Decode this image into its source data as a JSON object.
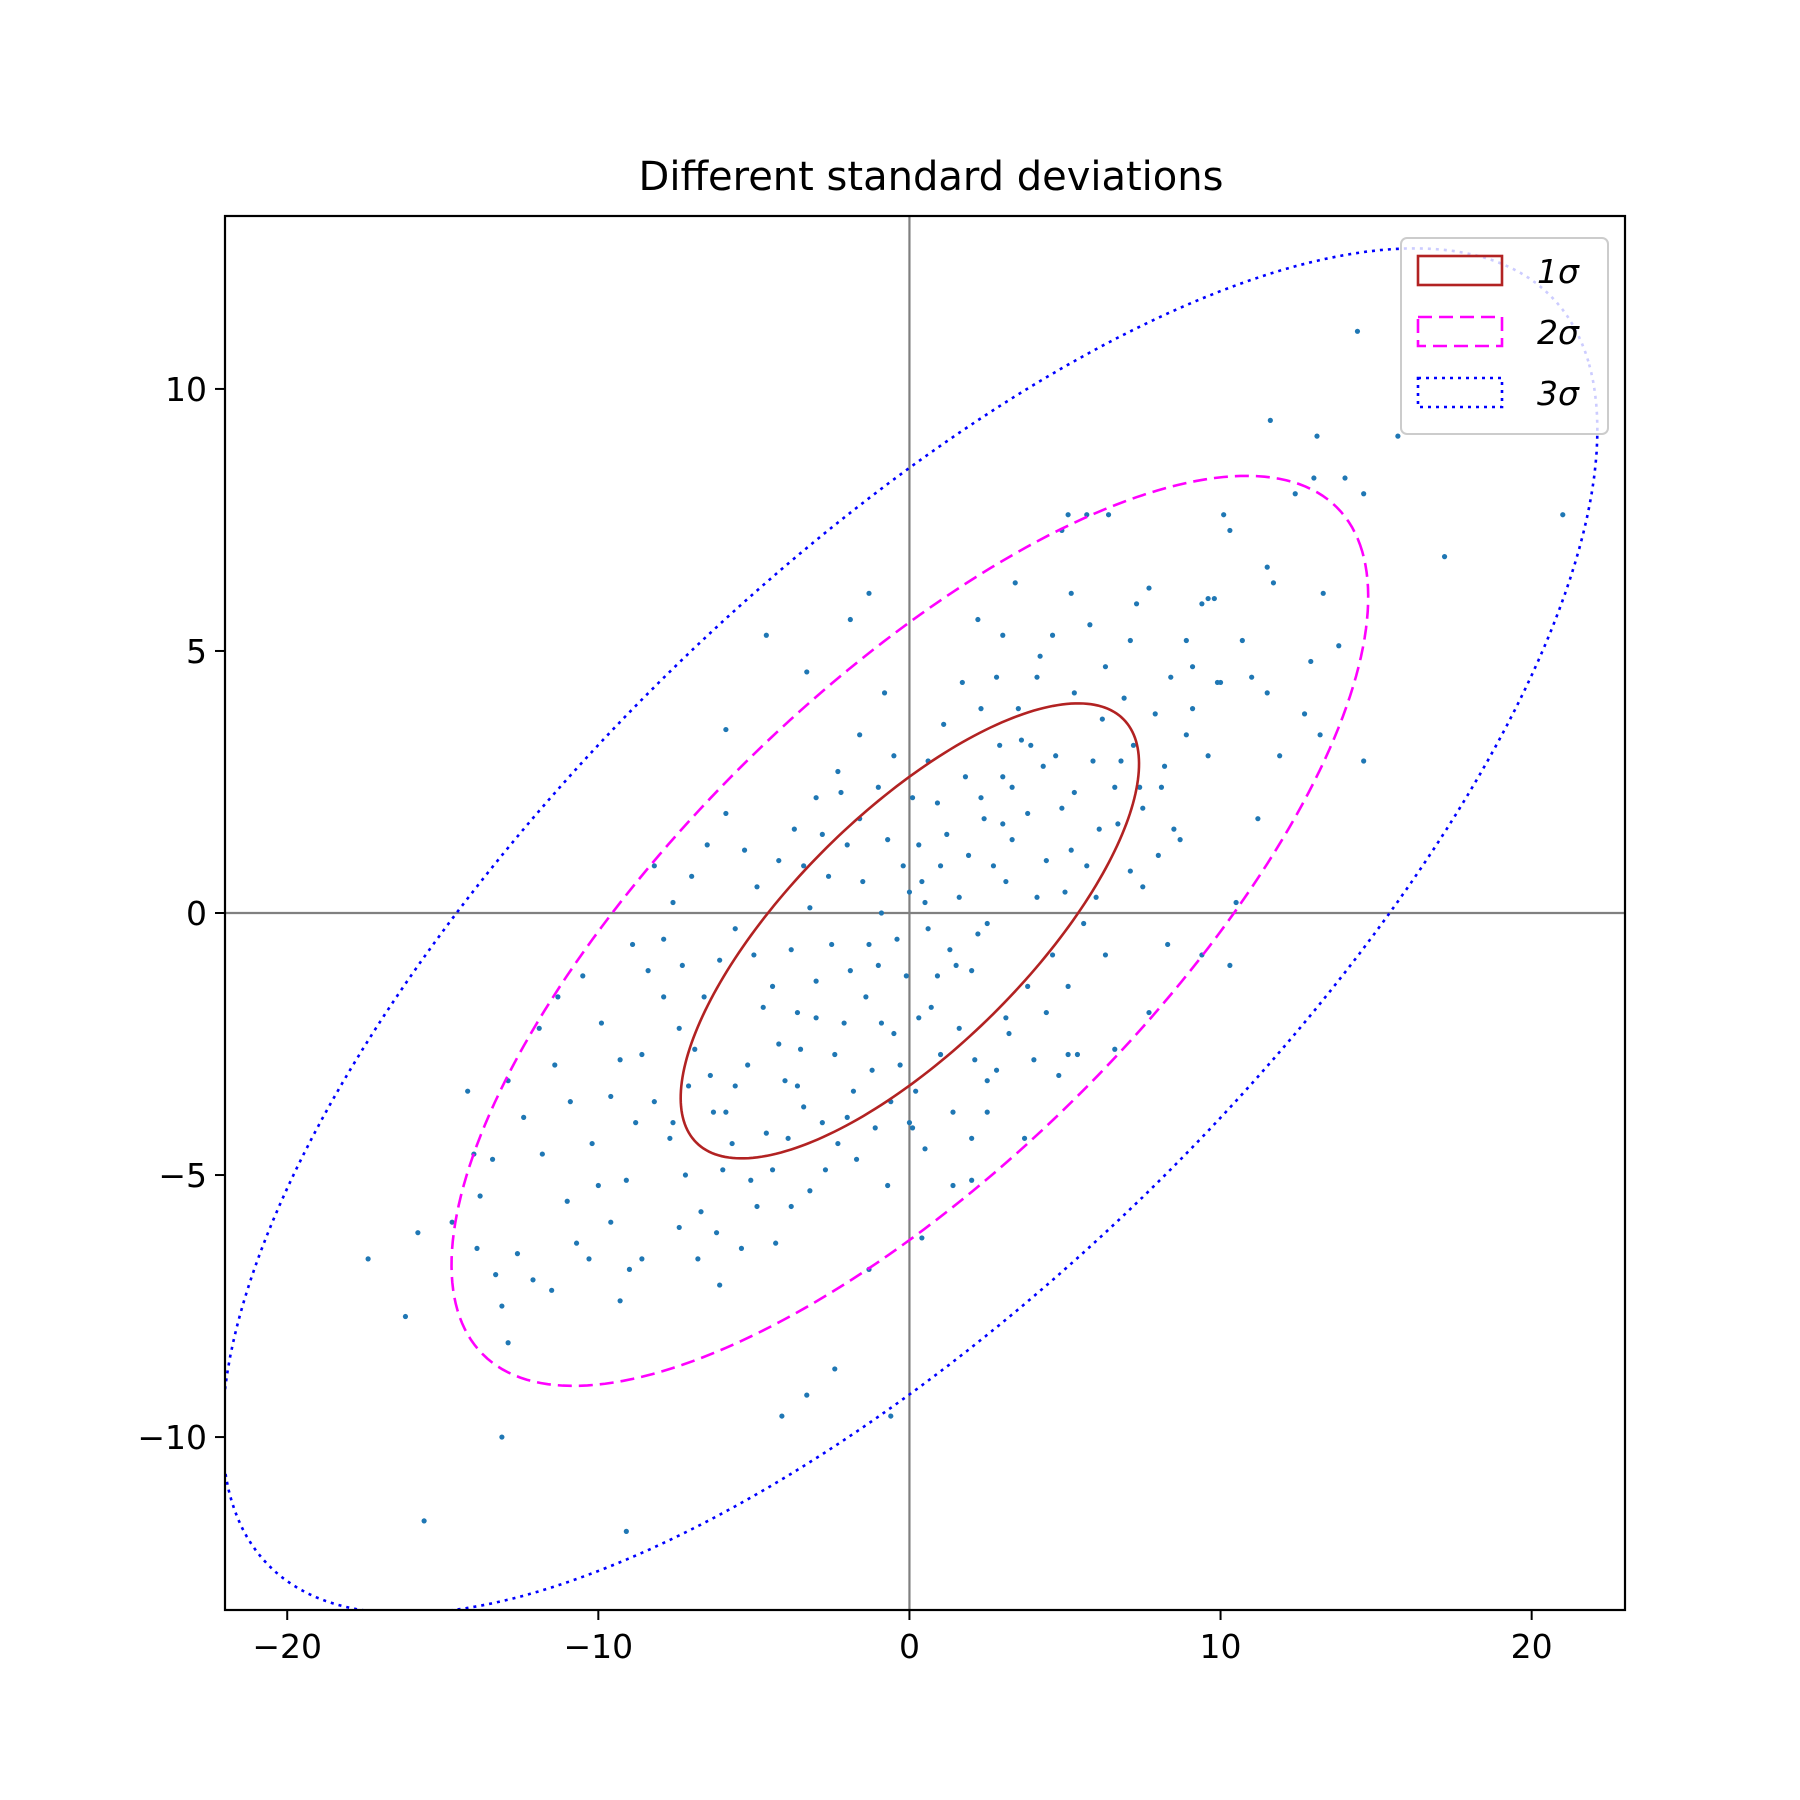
{
  "chart_data": {
    "type": "scatter",
    "title": "Different standard deviations",
    "xlabel": "",
    "ylabel": "",
    "xlim": [
      -22,
      23
    ],
    "ylim": [
      -13.3,
      13.3
    ],
    "xticks": [
      -20,
      -10,
      0,
      10,
      20
    ],
    "xtick_labels": [
      "−20",
      "−10",
      "0",
      "10",
      "20"
    ],
    "yticks": [
      -10,
      -5,
      0,
      5,
      10
    ],
    "ytick_labels": [
      "−10",
      "−5",
      "0",
      "5",
      "10"
    ],
    "grid": false,
    "reference_lines": {
      "x": 0,
      "y": 0,
      "color": "#808080"
    },
    "legend_position": "top-right",
    "scatter_color": "#1f77b4",
    "points": [
      [
        14.4,
        11.1
      ],
      [
        11.6,
        9.4
      ],
      [
        13.1,
        9.1
      ],
      [
        15.7,
        9.1
      ],
      [
        21.0,
        7.6
      ],
      [
        13.0,
        8.3
      ],
      [
        14.0,
        8.3
      ],
      [
        14.6,
        8.0
      ],
      [
        12.4,
        8.0
      ],
      [
        17.2,
        6.8
      ],
      [
        11.5,
        6.6
      ],
      [
        11.7,
        6.3
      ],
      [
        13.3,
        6.1
      ],
      [
        10.7,
        5.2
      ],
      [
        13.8,
        5.1
      ],
      [
        12.9,
        4.8
      ],
      [
        11.0,
        4.5
      ],
      [
        11.5,
        4.2
      ],
      [
        12.7,
        3.8
      ],
      [
        13.2,
        3.4
      ],
      [
        14.6,
        2.9
      ],
      [
        11.9,
        3.0
      ],
      [
        11.2,
        1.8
      ],
      [
        10.5,
        0.2
      ],
      [
        10.3,
        -1.0
      ],
      [
        10.1,
        7.6
      ],
      [
        10.3,
        7.3
      ],
      [
        9.8,
        6.0
      ],
      [
        9.6,
        6.0
      ],
      [
        9.1,
        4.7
      ],
      [
        9.9,
        4.4
      ],
      [
        8.9,
        3.4
      ],
      [
        9.6,
        3.0
      ],
      [
        8.1,
        2.4
      ],
      [
        8.7,
        1.4
      ],
      [
        8.0,
        1.1
      ],
      [
        7.7,
        6.2
      ],
      [
        7.3,
        5.9
      ],
      [
        7.1,
        5.2
      ],
      [
        6.4,
        7.6
      ],
      [
        5.7,
        7.6
      ],
      [
        5.1,
        7.6
      ],
      [
        4.9,
        7.3
      ],
      [
        3.4,
        6.3
      ],
      [
        2.2,
        5.6
      ],
      [
        3.0,
        5.3
      ],
      [
        2.8,
        4.5
      ],
      [
        4.2,
        4.9
      ],
      [
        5.3,
        4.2
      ],
      [
        6.2,
        3.7
      ],
      [
        6.8,
        2.9
      ],
      [
        7.4,
        2.4
      ],
      [
        6.7,
        1.7
      ],
      [
        7.1,
        0.8
      ],
      [
        7.5,
        0.5
      ],
      [
        6.0,
        0.3
      ],
      [
        5.7,
        0.9
      ],
      [
        5.2,
        1.2
      ],
      [
        4.9,
        2.0
      ],
      [
        4.3,
        2.8
      ],
      [
        3.9,
        3.2
      ],
      [
        3.3,
        2.4
      ],
      [
        3.0,
        1.7
      ],
      [
        2.3,
        2.2
      ],
      [
        1.8,
        2.6
      ],
      [
        1.2,
        1.5
      ],
      [
        0.9,
        2.1
      ],
      [
        0.3,
        1.3
      ],
      [
        0.0,
        0.4
      ],
      [
        0.6,
        -0.3
      ],
      [
        1.3,
        -0.7
      ],
      [
        2.0,
        -1.1
      ],
      [
        2.5,
        -0.2
      ],
      [
        3.1,
        0.6
      ],
      [
        4.1,
        0.3
      ],
      [
        4.6,
        -0.8
      ],
      [
        5.1,
        -1.4
      ],
      [
        6.3,
        -0.8
      ],
      [
        8.3,
        -0.6
      ],
      [
        9.4,
        -0.8
      ],
      [
        7.7,
        -1.9
      ],
      [
        6.6,
        -2.6
      ],
      [
        5.4,
        -2.7
      ],
      [
        4.8,
        -3.1
      ],
      [
        3.2,
        -2.3
      ],
      [
        2.8,
        -3.0
      ],
      [
        2.1,
        -2.8
      ],
      [
        1.6,
        -2.2
      ],
      [
        1.0,
        -2.7
      ],
      [
        0.2,
        -3.4
      ],
      [
        -0.3,
        -2.9
      ],
      [
        -0.9,
        -2.1
      ],
      [
        -1.4,
        -1.6
      ],
      [
        -1.9,
        -1.1
      ],
      [
        -2.5,
        -0.6
      ],
      [
        -3.0,
        -1.3
      ],
      [
        -3.6,
        -1.9
      ],
      [
        -4.2,
        -2.5
      ],
      [
        -4.7,
        -1.8
      ],
      [
        -5.2,
        -2.9
      ],
      [
        -5.6,
        -3.3
      ],
      [
        -6.3,
        -3.8
      ],
      [
        -6.9,
        -2.6
      ],
      [
        -7.4,
        -2.2
      ],
      [
        -7.9,
        -1.6
      ],
      [
        -8.4,
        -1.1
      ],
      [
        -8.9,
        -0.6
      ],
      [
        -8.6,
        -2.7
      ],
      [
        -8.2,
        -3.6
      ],
      [
        -7.7,
        -4.3
      ],
      [
        -7.2,
        -5.0
      ],
      [
        -6.7,
        -5.7
      ],
      [
        -6.2,
        -6.1
      ],
      [
        -5.4,
        -6.4
      ],
      [
        -4.9,
        -5.6
      ],
      [
        -4.4,
        -4.9
      ],
      [
        -3.9,
        -4.3
      ],
      [
        -3.4,
        -3.7
      ],
      [
        -2.8,
        -4.0
      ],
      [
        -2.3,
        -4.4
      ],
      [
        -1.7,
        -4.7
      ],
      [
        -1.1,
        -4.1
      ],
      [
        -0.6,
        -3.6
      ],
      [
        0.1,
        -4.1
      ],
      [
        0.5,
        -4.5
      ],
      [
        1.4,
        -3.8
      ],
      [
        2.0,
        -4.3
      ],
      [
        2.5,
        -3.2
      ],
      [
        3.1,
        -2.0
      ],
      [
        3.8,
        -1.4
      ],
      [
        -9.6,
        -3.5
      ],
      [
        -10.2,
        -4.4
      ],
      [
        -10.9,
        -3.6
      ],
      [
        -11.4,
        -2.9
      ],
      [
        -11.9,
        -2.2
      ],
      [
        -11.3,
        -1.6
      ],
      [
        -10.5,
        -1.2
      ],
      [
        -9.9,
        -2.1
      ],
      [
        -9.3,
        -2.8
      ],
      [
        -8.8,
        -4.0
      ],
      [
        -9.1,
        -5.1
      ],
      [
        -9.6,
        -5.9
      ],
      [
        -10.3,
        -6.6
      ],
      [
        -11.0,
        -5.5
      ],
      [
        -11.8,
        -4.6
      ],
      [
        -12.4,
        -3.9
      ],
      [
        -12.9,
        -3.2
      ],
      [
        -13.4,
        -4.7
      ],
      [
        -13.8,
        -5.4
      ],
      [
        -12.6,
        -6.5
      ],
      [
        -12.1,
        -7.0
      ],
      [
        -11.5,
        -7.2
      ],
      [
        -10.7,
        -6.3
      ],
      [
        -9.3,
        -7.4
      ],
      [
        -8.6,
        -6.6
      ],
      [
        -7.4,
        -6.0
      ],
      [
        -6.8,
        -6.6
      ],
      [
        -6.1,
        -7.1
      ],
      [
        -9.0,
        -6.8
      ],
      [
        -10.0,
        -5.2
      ],
      [
        -13.3,
        -6.9
      ],
      [
        -13.1,
        -7.5
      ],
      [
        -14.7,
        -5.9
      ],
      [
        -14.0,
        -4.6
      ],
      [
        -14.2,
        -3.4
      ],
      [
        -13.9,
        -6.4
      ],
      [
        -12.9,
        -8.2
      ],
      [
        -17.4,
        -6.6
      ],
      [
        -15.8,
        -6.1
      ],
      [
        -16.2,
        -7.7
      ],
      [
        -13.1,
        -10.0
      ],
      [
        -15.6,
        -11.6
      ],
      [
        -9.1,
        -11.8
      ],
      [
        -4.1,
        -9.6
      ],
      [
        -2.4,
        -8.7
      ],
      [
        -3.3,
        -9.2
      ],
      [
        -0.6,
        -9.6
      ],
      [
        -1.3,
        -6.8
      ],
      [
        -0.7,
        -5.2
      ],
      [
        0.4,
        -6.2
      ],
      [
        1.4,
        -5.2
      ],
      [
        2.0,
        -5.1
      ],
      [
        2.5,
        -3.8
      ],
      [
        3.7,
        -4.3
      ],
      [
        4.0,
        -2.8
      ],
      [
        4.4,
        -1.9
      ],
      [
        5.1,
        -2.7
      ],
      [
        -5.9,
        3.5
      ],
      [
        -4.6,
        5.3
      ],
      [
        -3.3,
        4.6
      ],
      [
        -1.3,
        6.1
      ],
      [
        -1.9,
        5.6
      ],
      [
        -0.8,
        4.2
      ],
      [
        -1.6,
        3.4
      ],
      [
        -2.3,
        2.7
      ],
      [
        -3.0,
        2.2
      ],
      [
        -3.7,
        1.6
      ],
      [
        -4.2,
        1.0
      ],
      [
        -4.9,
        0.5
      ],
      [
        -5.3,
        1.2
      ],
      [
        -5.9,
        1.9
      ],
      [
        -6.5,
        1.3
      ],
      [
        -7.0,
        0.7
      ],
      [
        -7.6,
        0.2
      ],
      [
        -8.2,
        0.9
      ],
      [
        -7.9,
        -0.5
      ],
      [
        -7.3,
        -1.0
      ],
      [
        -6.6,
        -1.6
      ],
      [
        -6.1,
        -0.9
      ],
      [
        -5.6,
        -0.3
      ],
      [
        -5.0,
        -0.8
      ],
      [
        -4.4,
        -1.4
      ],
      [
        -3.8,
        -0.7
      ],
      [
        -3.2,
        0.1
      ],
      [
        -2.6,
        0.7
      ],
      [
        -2.0,
        1.3
      ],
      [
        -1.5,
        0.6
      ],
      [
        -0.9,
        0.0
      ],
      [
        -0.4,
        -0.5
      ],
      [
        -0.1,
        -1.2
      ],
      [
        0.7,
        -1.8
      ],
      [
        -0.5,
        -2.3
      ],
      [
        -1.2,
        -3.0
      ],
      [
        -1.8,
        -3.4
      ],
      [
        -2.4,
        -2.7
      ],
      [
        -3.0,
        -2.0
      ],
      [
        -3.5,
        -2.6
      ],
      [
        -4.0,
        -3.2
      ],
      [
        -2.0,
        -3.9
      ],
      [
        -2.7,
        -4.9
      ],
      [
        -3.2,
        -5.3
      ],
      [
        -3.8,
        -5.6
      ],
      [
        -4.3,
        -6.3
      ],
      [
        -5.1,
        -5.1
      ],
      [
        -5.7,
        -4.4
      ],
      [
        0.0,
        -4.0
      ],
      [
        0.3,
        -2.0
      ],
      [
        0.5,
        0.2
      ],
      [
        1.0,
        0.9
      ],
      [
        1.6,
        0.3
      ],
      [
        2.2,
        -0.4
      ],
      [
        2.7,
        0.9
      ],
      [
        3.3,
        1.4
      ],
      [
        3.8,
        1.9
      ],
      [
        4.4,
        1.0
      ],
      [
        5.0,
        0.4
      ],
      [
        5.6,
        -0.2
      ],
      [
        6.1,
        1.6
      ],
      [
        6.6,
        2.4
      ],
      [
        7.2,
        3.2
      ],
      [
        7.9,
        3.8
      ],
      [
        8.4,
        4.5
      ],
      [
        8.9,
        5.2
      ],
      [
        9.4,
        5.9
      ],
      [
        6.9,
        4.1
      ],
      [
        6.3,
        4.7
      ],
      [
        5.8,
        5.5
      ],
      [
        5.2,
        6.1
      ],
      [
        4.6,
        5.3
      ],
      [
        4.1,
        4.5
      ],
      [
        3.5,
        3.9
      ],
      [
        2.9,
        3.2
      ],
      [
        2.3,
        3.9
      ],
      [
        1.7,
        4.4
      ],
      [
        1.1,
        3.6
      ],
      [
        0.6,
        2.9
      ],
      [
        0.1,
        2.2
      ],
      [
        -0.5,
        3.0
      ],
      [
        -1.0,
        2.4
      ],
      [
        -1.6,
        1.8
      ],
      [
        -2.2,
        2.3
      ],
      [
        -2.8,
        1.5
      ],
      [
        -3.4,
        0.9
      ],
      [
        -0.7,
        1.4
      ],
      [
        -1.3,
        -0.6
      ],
      [
        1.9,
        1.1
      ],
      [
        2.4,
        1.8
      ],
      [
        3.0,
        2.6
      ],
      [
        3.6,
        3.3
      ],
      [
        4.7,
        3.0
      ],
      [
        5.3,
        2.3
      ],
      [
        5.9,
        2.9
      ],
      [
        -0.2,
        0.9
      ],
      [
        0.9,
        -1.2
      ],
      [
        1.5,
        -1.0
      ],
      [
        -6.4,
        -3.1
      ],
      [
        -5.9,
        -3.8
      ],
      [
        -7.1,
        -3.3
      ],
      [
        -7.6,
        -4.0
      ],
      [
        -6.0,
        -4.9
      ],
      [
        -4.6,
        -4.2
      ],
      [
        -3.6,
        -3.3
      ],
      [
        -2.1,
        -2.1
      ],
      [
        -1.0,
        -1.0
      ],
      [
        0.4,
        0.6
      ],
      [
        8.2,
        2.8
      ],
      [
        7.5,
        2.0
      ],
      [
        9.1,
        3.9
      ],
      [
        8.5,
        1.6
      ],
      [
        10.0,
        4.4
      ]
    ]
  },
  "plot": {
    "title": "Different standard deviations",
    "legend": [
      {
        "label": "1σ",
        "color": "#b22222",
        "style": "solid"
      },
      {
        "label": "2σ",
        "color": "#ff00ff",
        "style": "dashed"
      },
      {
        "label": "3σ",
        "color": "#0000ff",
        "style": "dotted"
      }
    ],
    "ellipses": [
      {
        "n_std": 1,
        "color": "#b22222",
        "style": "solid"
      },
      {
        "n_std": 2,
        "color": "#ff00ff",
        "style": "dashed"
      },
      {
        "n_std": 3,
        "color": "#0000ff",
        "style": "dotted"
      }
    ]
  }
}
